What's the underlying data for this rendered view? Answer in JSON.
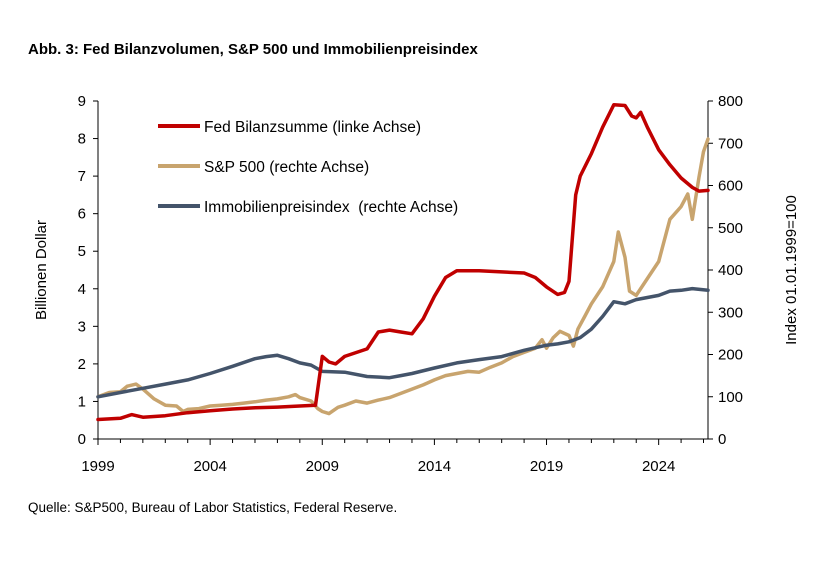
{
  "title": "Abb. 3: Fed Bilanzvolumen, S&P 500 und Immobilienpreisindex",
  "source": "Quelle: S&P500, Bureau of Labor Statistics, Federal Reserve.",
  "chart_data": {
    "type": "line",
    "ylabel_left": "Billionen Dollar",
    "ylabel_right": "Index 01.01.1999=100",
    "ylim_left": [
      0,
      9
    ],
    "ylim_right": [
      0,
      800
    ],
    "xlim": [
      1999,
      2026.2
    ],
    "left_ticks": [
      "0",
      "1",
      "2",
      "3",
      "4",
      "5",
      "6",
      "7",
      "8",
      "9"
    ],
    "right_ticks": [
      "0",
      "100",
      "200",
      "300",
      "400",
      "500",
      "600",
      "700",
      "800"
    ],
    "x_ticks": [
      "1999",
      "2004",
      "2009",
      "2014",
      "2019",
      "2024"
    ],
    "legend_position": "top-left",
    "grid": false,
    "series": [
      {
        "name": "Fed Bilanzsumme (linke Achse)",
        "axis": "left",
        "color": "#c00000",
        "points": [
          [
            1999,
            0.52
          ],
          [
            2000,
            0.55
          ],
          [
            2000.5,
            0.65
          ],
          [
            2001,
            0.58
          ],
          [
            2002,
            0.62
          ],
          [
            2003,
            0.7
          ],
          [
            2004,
            0.75
          ],
          [
            2005,
            0.8
          ],
          [
            2006,
            0.83
          ],
          [
            2007,
            0.85
          ],
          [
            2008,
            0.88
          ],
          [
            2008.7,
            0.9
          ],
          [
            2009,
            2.2
          ],
          [
            2009.3,
            2.05
          ],
          [
            2009.6,
            2.0
          ],
          [
            2010,
            2.2
          ],
          [
            2010.5,
            2.3
          ],
          [
            2011,
            2.4
          ],
          [
            2011.5,
            2.85
          ],
          [
            2012,
            2.9
          ],
          [
            2012.5,
            2.85
          ],
          [
            2013,
            2.8
          ],
          [
            2013.5,
            3.2
          ],
          [
            2014,
            3.8
          ],
          [
            2014.5,
            4.3
          ],
          [
            2015,
            4.48
          ],
          [
            2016,
            4.48
          ],
          [
            2017,
            4.45
          ],
          [
            2018,
            4.42
          ],
          [
            2018.5,
            4.3
          ],
          [
            2019,
            4.05
          ],
          [
            2019.5,
            3.85
          ],
          [
            2019.8,
            3.9
          ],
          [
            2020,
            4.2
          ],
          [
            2020.3,
            6.5
          ],
          [
            2020.5,
            7.0
          ],
          [
            2021,
            7.6
          ],
          [
            2021.5,
            8.3
          ],
          [
            2022,
            8.9
          ],
          [
            2022.5,
            8.88
          ],
          [
            2022.8,
            8.6
          ],
          [
            2023,
            8.55
          ],
          [
            2023.2,
            8.7
          ],
          [
            2023.5,
            8.3
          ],
          [
            2024,
            7.7
          ],
          [
            2024.5,
            7.3
          ],
          [
            2025,
            6.95
          ],
          [
            2025.5,
            6.7
          ],
          [
            2025.8,
            6.6
          ],
          [
            2026.2,
            6.62
          ]
        ]
      },
      {
        "name": "S&P 500 (rechte Achse)",
        "axis": "right",
        "color": "#c8a46e",
        "points": [
          [
            1999,
            100
          ],
          [
            1999.5,
            110
          ],
          [
            2000,
            112
          ],
          [
            2000.3,
            125
          ],
          [
            2000.7,
            130
          ],
          [
            2001,
            118
          ],
          [
            2001.5,
            95
          ],
          [
            2002,
            80
          ],
          [
            2002.5,
            78
          ],
          [
            2002.8,
            65
          ],
          [
            2003,
            70
          ],
          [
            2003.5,
            72
          ],
          [
            2004,
            78
          ],
          [
            2004.5,
            80
          ],
          [
            2005,
            82
          ],
          [
            2005.5,
            85
          ],
          [
            2006,
            88
          ],
          [
            2006.5,
            92
          ],
          [
            2007,
            95
          ],
          [
            2007.5,
            100
          ],
          [
            2007.8,
            105
          ],
          [
            2008,
            98
          ],
          [
            2008.5,
            90
          ],
          [
            2008.8,
            72
          ],
          [
            2009,
            65
          ],
          [
            2009.3,
            60
          ],
          [
            2009.7,
            75
          ],
          [
            2010,
            80
          ],
          [
            2010.5,
            90
          ],
          [
            2011,
            85
          ],
          [
            2011.5,
            92
          ],
          [
            2012,
            98
          ],
          [
            2012.5,
            108
          ],
          [
            2013,
            118
          ],
          [
            2013.5,
            128
          ],
          [
            2014,
            140
          ],
          [
            2014.5,
            150
          ],
          [
            2015,
            155
          ],
          [
            2015.5,
            160
          ],
          [
            2016,
            158
          ],
          [
            2016.5,
            170
          ],
          [
            2017,
            180
          ],
          [
            2017.5,
            195
          ],
          [
            2018,
            205
          ],
          [
            2018.5,
            215
          ],
          [
            2018.8,
            235
          ],
          [
            2019,
            215
          ],
          [
            2019.3,
            240
          ],
          [
            2019.6,
            255
          ],
          [
            2020,
            245
          ],
          [
            2020.2,
            220
          ],
          [
            2020.4,
            260
          ],
          [
            2020.7,
            290
          ],
          [
            2021,
            320
          ],
          [
            2021.5,
            360
          ],
          [
            2022,
            420
          ],
          [
            2022.2,
            490
          ],
          [
            2022.5,
            430
          ],
          [
            2022.7,
            350
          ],
          [
            2023,
            340
          ],
          [
            2023.5,
            380
          ],
          [
            2024,
            420
          ],
          [
            2024.5,
            520
          ],
          [
            2025,
            550
          ],
          [
            2025.3,
            580
          ],
          [
            2025.5,
            520
          ],
          [
            2025.8,
            620
          ],
          [
            2026,
            680
          ],
          [
            2026.2,
            710
          ]
        ]
      },
      {
        "name": "Immobilienpreisindex  (rechte Achse)",
        "axis": "right",
        "color": "#44546a",
        "points": [
          [
            1999,
            100
          ],
          [
            2000,
            110
          ],
          [
            2001,
            120
          ],
          [
            2002,
            130
          ],
          [
            2003,
            140
          ],
          [
            2004,
            155
          ],
          [
            2005,
            172
          ],
          [
            2006,
            190
          ],
          [
            2006.5,
            195
          ],
          [
            2007,
            198
          ],
          [
            2007.5,
            190
          ],
          [
            2008,
            180
          ],
          [
            2008.5,
            175
          ],
          [
            2009,
            160
          ],
          [
            2010,
            158
          ],
          [
            2011,
            148
          ],
          [
            2012,
            145
          ],
          [
            2012.5,
            150
          ],
          [
            2013,
            155
          ],
          [
            2014,
            168
          ],
          [
            2015,
            180
          ],
          [
            2016,
            188
          ],
          [
            2017,
            195
          ],
          [
            2018,
            210
          ],
          [
            2019,
            222
          ],
          [
            2019.5,
            225
          ],
          [
            2020,
            230
          ],
          [
            2020.5,
            240
          ],
          [
            2021,
            260
          ],
          [
            2021.5,
            290
          ],
          [
            2022,
            325
          ],
          [
            2022.5,
            320
          ],
          [
            2023,
            330
          ],
          [
            2023.5,
            335
          ],
          [
            2024,
            340
          ],
          [
            2024.5,
            350
          ],
          [
            2025,
            352
          ],
          [
            2025.5,
            356
          ],
          [
            2026.2,
            352
          ]
        ]
      }
    ]
  }
}
